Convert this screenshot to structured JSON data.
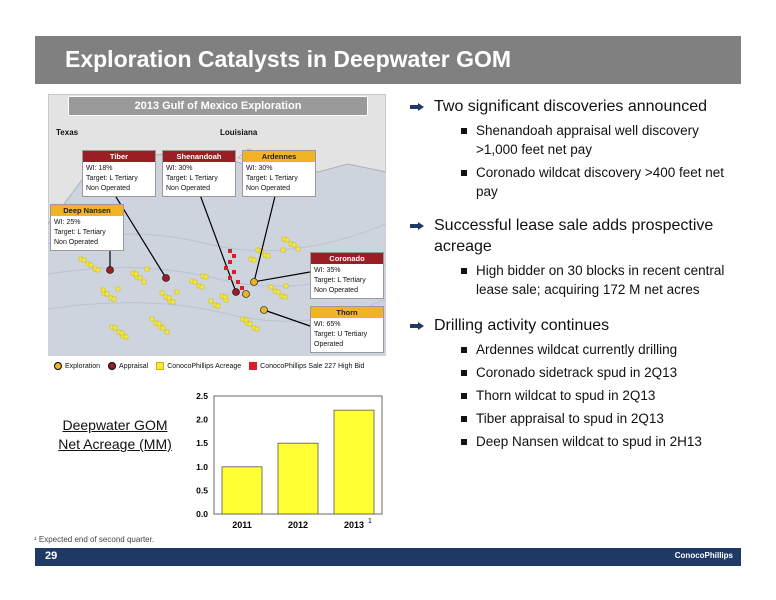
{
  "title": "Exploration Catalysts in Deepwater GOM",
  "map": {
    "header": "2013 Gulf of Mexico Exploration",
    "states": [
      "Texas",
      "Louisiana"
    ],
    "callouts": [
      {
        "name": "Tiber",
        "wi": "WI: 18%",
        "target": "Target: L Tertiary",
        "status": "Non Operated"
      },
      {
        "name": "Shenandoah",
        "wi": "WI: 30%",
        "target": "Target: L Tertiary",
        "status": "Non Operated"
      },
      {
        "name": "Ardennes",
        "wi": "WI: 30%",
        "target": "Target: L Tertiary",
        "status": "Non Operated"
      },
      {
        "name": "Deep Nansen",
        "wi": "WI: 25%",
        "target": "Target: L Tertiary",
        "status": "Non Operated"
      },
      {
        "name": "Coronado",
        "wi": "WI: 35%",
        "target": "Target: L Tertiary",
        "status": "Non Operated"
      },
      {
        "name": "Thorn",
        "wi": "WI: 65%",
        "target": "Target: U Tertiary",
        "status": "Operated"
      }
    ],
    "legend": [
      "Exploration",
      "Appraisal",
      "ConocoPhillips Acreage",
      "ConocoPhillips Sale 227 High Bid"
    ],
    "colors": {
      "exploration": "#f0b323",
      "appraisal": "#9a1e24",
      "acreage": "#f5e84a",
      "high_bid": "#d81e2a"
    }
  },
  "bullets": [
    {
      "text": "Two significant discoveries announced",
      "subs": [
        "Shenandoah appraisal well discovery >1,000 feet net pay",
        "Coronado wildcat discovery >400 feet net pay"
      ]
    },
    {
      "text": "Successful lease sale adds prospective acreage",
      "subs": [
        "High bidder on 30 blocks in recent central lease sale; acquiring 172 M net acres"
      ]
    },
    {
      "text": "Drilling activity continues",
      "subs": [
        "Ardennes wildcat currently drilling",
        "Coronado sidetrack spud in 2Q13",
        "Thorn wildcat to spud in 2Q13",
        "Tiber appraisal to spud in 2Q13",
        "Deep Nansen wildcat to spud in 2H13"
      ]
    }
  ],
  "chart_label": "Deepwater GOM Net Acreage (MM)",
  "chart_data": {
    "type": "bar",
    "categories": [
      "2011",
      "2012",
      "2013"
    ],
    "category_superscripts": [
      "",
      "",
      "1"
    ],
    "values": [
      1.0,
      1.5,
      2.2
    ],
    "ylim": [
      0,
      2.5
    ],
    "yticks": [
      "0.0",
      "0.5",
      "1.0",
      "1.5",
      "2.0",
      "2.5"
    ],
    "bar_color": "#ffff33",
    "title": "",
    "xlabel": "",
    "ylabel": ""
  },
  "footnote": "¹ Expected end of second quarter.",
  "footer": {
    "page": "29",
    "logo": "ConocoPhillips"
  }
}
